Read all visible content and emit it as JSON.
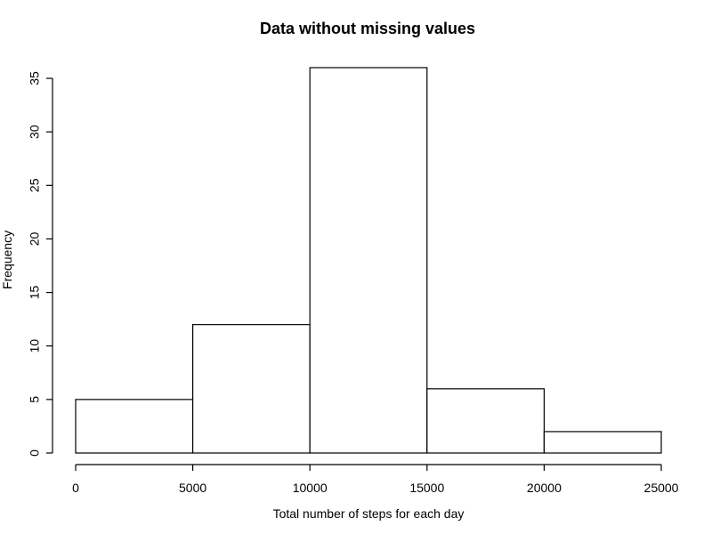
{
  "chart_data": {
    "type": "bar",
    "title": "Data without missing values",
    "xlabel": "Total number of steps for each day",
    "ylabel": "Frequency",
    "bin_edges": [
      0,
      5000,
      10000,
      15000,
      20000,
      25000
    ],
    "values": [
      5,
      12,
      36,
      6,
      2
    ],
    "xlim": [
      0,
      25000
    ],
    "ylim": [
      0,
      36
    ],
    "x_ticks": [
      0,
      5000,
      10000,
      15000,
      20000,
      25000
    ],
    "x_tick_labels": [
      "0",
      "5000",
      "10000",
      "15000",
      "20000",
      "25000"
    ],
    "y_ticks": [
      0,
      5,
      10,
      15,
      20,
      25,
      30,
      35
    ],
    "y_tick_labels": [
      "0",
      "5",
      "10",
      "15",
      "20",
      "25",
      "30",
      "35"
    ],
    "grid": false,
    "legend": "none",
    "colors": {
      "bar_fill": "#ffffff",
      "bar_stroke": "#000000",
      "text": "#000000"
    }
  }
}
